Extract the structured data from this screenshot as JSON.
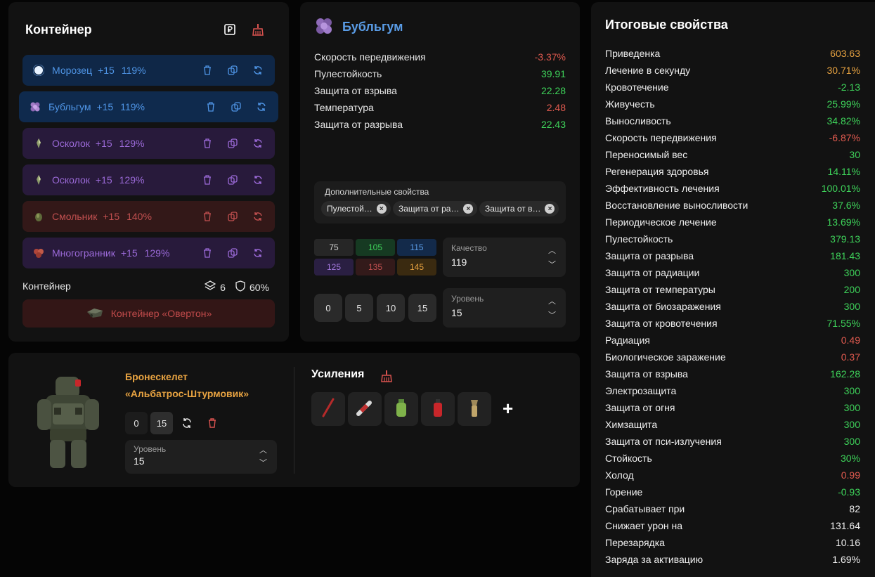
{
  "container": {
    "title": "Контейнер",
    "slots": [
      {
        "name": "Морозец",
        "plus": "+15",
        "pct": "119%",
        "color": "blue"
      },
      {
        "name": "Бубльгум",
        "plus": "+15",
        "pct": "119%",
        "color": "blue"
      },
      {
        "name": "Осколок",
        "plus": "+15",
        "pct": "129%",
        "color": "purple"
      },
      {
        "name": "Осколок",
        "plus": "+15",
        "pct": "129%",
        "color": "purple"
      },
      {
        "name": "Смольник",
        "plus": "+15",
        "pct": "140%",
        "color": "red"
      },
      {
        "name": "Многогранник",
        "plus": "+15",
        "pct": "129%",
        "color": "purple"
      }
    ],
    "footer_label": "Контейнер",
    "slots_count": "6",
    "protection": "60%",
    "container_button": "Контейнер «Овертон»"
  },
  "artifact": {
    "title": "Бубльгум",
    "stats": [
      {
        "label": "Скорость передвижения",
        "value": "-3.37%",
        "color": "#e05a4f"
      },
      {
        "label": "Пулестойкость",
        "value": "39.91",
        "color": "#3ed35a"
      },
      {
        "label": "Защита от взрыва",
        "value": "22.28",
        "color": "#3ed35a"
      },
      {
        "label": "Температура",
        "value": "2.48",
        "color": "#e05a4f"
      },
      {
        "label": "Защита от разрыва",
        "value": "22.43",
        "color": "#3ed35a"
      }
    ],
    "additional_title": "Дополнительные свойства",
    "chips": [
      "Пулестой…",
      "Защита от ра…",
      "Защита от в…"
    ],
    "quality_values": [
      "75",
      "105",
      "115",
      "125",
      "135",
      "145"
    ],
    "quality_label": "Качество",
    "quality_value": "119",
    "level_buttons": [
      "0",
      "5",
      "10",
      "15"
    ],
    "level_label": "Уровень",
    "level_value": "15"
  },
  "armor": {
    "name_line1": "Бронескелет",
    "name_line2": "«Альбатрос-Штурмовик»",
    "level_btn_0": "0",
    "level_btn_15": "15",
    "level_label": "Уровень",
    "level_value": "15",
    "boosts_title": "Усиления",
    "add_symbol": "+"
  },
  "totals": {
    "title": "Итоговые свойства",
    "rows": [
      {
        "label": "Приведенка",
        "value": "603.63",
        "color": "#e8a341"
      },
      {
        "label": "Лечение в секунду",
        "value": "30.71%",
        "color": "#e8a341"
      },
      {
        "label": "Кровотечение",
        "value": "-2.13",
        "color": "#3ed35a"
      },
      {
        "label": "Живучесть",
        "value": "25.99%",
        "color": "#3ed35a"
      },
      {
        "label": "Выносливость",
        "value": "34.82%",
        "color": "#3ed35a"
      },
      {
        "label": "Скорость передвижения",
        "value": "-6.87%",
        "color": "#e05a4f"
      },
      {
        "label": "Переносимый вес",
        "value": "30",
        "color": "#3ed35a"
      },
      {
        "label": "Регенерация здоровья",
        "value": "14.11%",
        "color": "#3ed35a"
      },
      {
        "label": "Эффективность лечения",
        "value": "100.01%",
        "color": "#3ed35a"
      },
      {
        "label": "Восстановление выносливости",
        "value": "37.6%",
        "color": "#3ed35a"
      },
      {
        "label": "Периодическое лечение",
        "value": "13.69%",
        "color": "#3ed35a"
      },
      {
        "label": "Пулестойкость",
        "value": "379.13",
        "color": "#3ed35a"
      },
      {
        "label": "Защита от разрыва",
        "value": "181.43",
        "color": "#3ed35a"
      },
      {
        "label": "Защита от радиации",
        "value": "300",
        "color": "#3ed35a"
      },
      {
        "label": "Защита от температуры",
        "value": "200",
        "color": "#3ed35a"
      },
      {
        "label": "Защита от биозаражения",
        "value": "300",
        "color": "#3ed35a"
      },
      {
        "label": "Защита от кровотечения",
        "value": "71.55%",
        "color": "#3ed35a"
      },
      {
        "label": "Радиация",
        "value": "0.49",
        "color": "#e05a4f"
      },
      {
        "label": "Биологическое заражение",
        "value": "0.37",
        "color": "#e05a4f"
      },
      {
        "label": "Защита от взрыва",
        "value": "162.28",
        "color": "#3ed35a"
      },
      {
        "label": "Электрозащита",
        "value": "300",
        "color": "#3ed35a"
      },
      {
        "label": "Защита от огня",
        "value": "300",
        "color": "#3ed35a"
      },
      {
        "label": "Химзащита",
        "value": "300",
        "color": "#3ed35a"
      },
      {
        "label": "Защита от пси-излучения",
        "value": "300",
        "color": "#3ed35a"
      },
      {
        "label": "Стойкость",
        "value": "30%",
        "color": "#3ed35a"
      },
      {
        "label": "Холод",
        "value": "0.99",
        "color": "#e05a4f"
      },
      {
        "label": "Горение",
        "value": "-0.93",
        "color": "#3ed35a"
      },
      {
        "label": "Срабатывает при",
        "value": "82",
        "color": "#efefef"
      },
      {
        "label": "Снижает урон на",
        "value": "131.64",
        "color": "#efefef"
      },
      {
        "label": "Перезарядка",
        "value": "10.16",
        "color": "#efefef"
      },
      {
        "label": "Заряда за активацию",
        "value": "1.69%",
        "color": "#efefef"
      }
    ]
  }
}
